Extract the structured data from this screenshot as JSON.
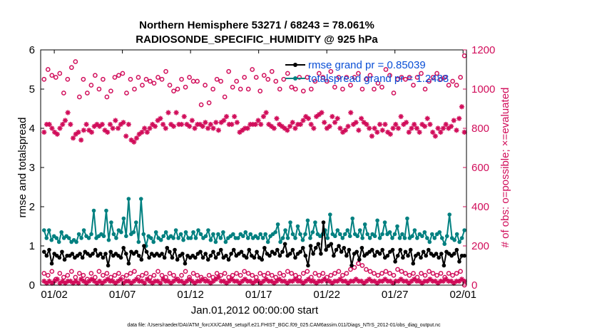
{
  "chart_data": {
    "type": "line",
    "title_line1": "Northern Hemisphere 53271 / 68243 = 78.061%",
    "title_line2": "RADIOSONDE_SPECIFIC_HUMIDITY @ 925 hPa",
    "xlabel": "Jan.01,2012 00:00:00 start",
    "ylabel_left": "rmse and totalspread",
    "ylabel_right": "# of obs: o=possible; ×=evaluated",
    "footer": "data file: /Users/raeder/DAI/ATM_forcXX/CAM6_setup/f.e21.FHIST_BGC.f09_025.CAM6assim.011/Diags_NTrS_2012-01/obs_diag_output.nc",
    "xlim": [
      0.5,
      31.75
    ],
    "ylim_left": [
      0,
      6
    ],
    "ylim_right": [
      0,
      1200
    ],
    "xticks": [
      1.5,
      6.5,
      11.5,
      16.5,
      21.5,
      26.5,
      31.5
    ],
    "xtick_labels": [
      "01/02",
      "01/07",
      "01/12",
      "01/17",
      "01/22",
      "01/27",
      "02/01"
    ],
    "yticks_left": [
      "0",
      "1",
      "2",
      "3",
      "4",
      "5",
      "6"
    ],
    "yticks_right": [
      "0",
      "200",
      "400",
      "600",
      "800",
      "1000",
      "1200"
    ],
    "colors": {
      "rmse": "#000000",
      "spread": "#008080",
      "obs": "#d10d5a",
      "legend_text": "#0a4fd6"
    },
    "x_start": 0.75,
    "x_step": 0.25,
    "series": [
      {
        "name": "rmse",
        "legend": "rmse grand pr = 0.85039",
        "axis": "left",
        "values": [
          0.85,
          0.75,
          0.9,
          0.55,
          0.8,
          0.75,
          0.7,
          0.85,
          0.65,
          0.75,
          0.75,
          0.8,
          0.7,
          0.75,
          0.8,
          0.7,
          0.85,
          0.8,
          0.75,
          0.8,
          0.9,
          0.75,
          0.8,
          0.7,
          0.8,
          0.5,
          0.85,
          0.75,
          0.8,
          0.75,
          0.7,
          0.95,
          0.8,
          0.55,
          0.85,
          0.8,
          0.85,
          0.75,
          0.65,
          1.0,
          0.85,
          0.7,
          0.8,
          0.75,
          0.8,
          0.75,
          0.8,
          0.7,
          0.95,
          0.85,
          0.7,
          0.9,
          0.65,
          0.75,
          0.8,
          0.55,
          0.75,
          0.7,
          0.75,
          0.7,
          0.8,
          0.85,
          0.7,
          0.8,
          0.65,
          0.75,
          0.85,
          0.7,
          0.8,
          0.9,
          0.7,
          0.75,
          0.65,
          0.8,
          0.9,
          0.75,
          0.8,
          0.85,
          0.75,
          0.7,
          0.9,
          0.75,
          0.7,
          0.85,
          0.7,
          0.65,
          0.95,
          0.8,
          0.75,
          0.85,
          0.8,
          0.9,
          0.75,
          0.85,
          1.05,
          0.75,
          0.8,
          0.9,
          0.7,
          0.8,
          0.85,
          0.95,
          0.75,
          0.5,
          1.0,
          0.8,
          0.95,
          1.05,
          0.8,
          1.6,
          0.9,
          1.0,
          1.05,
          0.75,
          0.9,
          1.0,
          0.85,
          0.95,
          0.75,
          0.9,
          0.5,
          0.8,
          0.85,
          0.65,
          0.95,
          0.75,
          0.8,
          0.85,
          0.9,
          0.75,
          0.85,
          0.8,
          0.9,
          0.7,
          0.75,
          0.85,
          0.9,
          0.6,
          0.75,
          0.9,
          0.7,
          0.85,
          0.75,
          0.9,
          0.55,
          0.75,
          0.8,
          0.7,
          0.85,
          0.75,
          0.9,
          0.8,
          0.75,
          0.8,
          0.7,
          0.8,
          0.5,
          0.85,
          0.8,
          0.75,
          0.8,
          0.9,
          0.6,
          0.75,
          0.75
        ]
      },
      {
        "name": "totalspread",
        "legend": "totalspread grand pr = 1.2488",
        "axis": "left",
        "values": [
          1.4,
          1.2,
          1.4,
          1.15,
          1.25,
          1.2,
          1.1,
          1.35,
          1.2,
          1.25,
          1.2,
          1.1,
          1.15,
          1.1,
          1.3,
          1.2,
          1.4,
          1.25,
          1.2,
          1.3,
          1.9,
          1.2,
          1.25,
          1.3,
          1.25,
          1.9,
          1.15,
          1.6,
          1.3,
          1.2,
          1.4,
          1.35,
          1.7,
          1.25,
          2.2,
          1.3,
          1.35,
          1.6,
          1.1,
          2.2,
          1.3,
          1.0,
          1.25,
          1.2,
          1.1,
          1.35,
          1.2,
          1.15,
          1.25,
          1.35,
          1.2,
          1.25,
          1.2,
          1.4,
          1.2,
          1.3,
          1.15,
          1.35,
          1.2,
          1.2,
          1.35,
          1.2,
          1.4,
          1.3,
          1.2,
          1.25,
          1.4,
          1.15,
          1.3,
          1.1,
          1.3,
          1.2,
          1.35,
          1.1,
          1.2,
          1.25,
          1.3,
          1.2,
          1.2,
          1.3,
          1.25,
          1.35,
          1.2,
          1.3,
          1.2,
          1.25,
          1.2,
          1.3,
          1.2,
          1.3,
          1.1,
          1.25,
          1.3,
          1.35,
          1.55,
          1.1,
          1.2,
          1.4,
          1.2,
          1.6,
          1.3,
          1.2,
          1.5,
          1.3,
          1.15,
          1.3,
          1.65,
          1.2,
          1.35,
          1.6,
          1.3,
          1.25,
          1.3,
          1.4,
          1.2,
          1.8,
          1.3,
          1.25,
          1.4,
          1.3,
          1.2,
          1.3,
          1.4,
          1.25,
          1.7,
          1.3,
          1.25,
          1.4,
          1.2,
          1.55,
          1.3,
          1.2,
          1.3,
          1.25,
          1.65,
          1.2,
          1.3,
          1.6,
          1.3,
          1.35,
          1.2,
          1.3,
          1.5,
          1.2,
          1.3,
          1.2,
          1.7,
          1.2,
          1.25,
          1.4,
          1.2,
          1.3,
          1.25,
          1.35,
          1.2,
          1.1,
          1.3,
          1.2,
          1.3,
          1.35,
          1.2,
          1.05,
          1.25,
          1.8,
          1.2,
          1.15,
          1.3,
          1.1,
          1.2,
          1.4
        ]
      },
      {
        "name": "obs_possible",
        "axis": "right",
        "marker": "o",
        "values": [
          1050,
          1100,
          1070,
          1060,
          1080,
          980,
          1050,
          1110,
          1140,
          960,
          1050,
          980,
          1020,
          1070,
          1000,
          1050,
          960,
          990,
          1060,
          1070,
          1080,
          980,
          1050,
          1000,
          1060,
          1020,
          1050,
          1040,
          1030,
          1060,
          1050,
          1090,
          1020,
          990,
          1000,
          1050,
          1010,
          1060,
          1040,
          1040,
          920,
          1020,
          930,
          1000,
          1050,
          1040,
          960,
          1090,
          1010,
          1040,
          1000,
          1060,
          1000,
          1100,
          1060,
          990,
          1070,
          1050,
          1090,
          1040,
          1000,
          1050,
          1080,
          1010,
          1000,
          1060,
          990,
          1060,
          1000,
          1040,
          1080,
          1060,
          1040,
          1090,
          1010,
          1060,
          1000,
          1060,
          1020,
          1060,
          1080,
          1000,
          1050,
          1070,
          1000,
          1030,
          1010,
          1100,
          1070,
          980,
          1050,
          1060,
          1050,
          1060,
          1020,
          1060,
          1080,
          1000,
          1040,
          1060,
          1080,
          1050,
          1060,
          1020,
          1040,
          1020,
          1060,
          1170
        ]
      },
      {
        "name": "obs_evaluated",
        "axis": "right",
        "marker": "x",
        "values": [
          780,
          820,
          820,
          800,
          780,
          770,
          800,
          820,
          840,
          880,
          820,
          750,
          770,
          780,
          740,
          790,
          820,
          790,
          780,
          810,
          820,
          810,
          820,
          790,
          780,
          820,
          800,
          840,
          800,
          820,
          830,
          760,
          820,
          740,
          730,
          750,
          770,
          780,
          800,
          780,
          800,
          820,
          810,
          840,
          850,
          820,
          800,
          880,
          820,
          810,
          880,
          820,
          820,
          860,
          820,
          810,
          840,
          800,
          820,
          820,
          810,
          830,
          800,
          820,
          800,
          830,
          790,
          830,
          840,
          860,
          820,
          820,
          860,
          830,
          780,
          790,
          800,
          800,
          820,
          820,
          820,
          840,
          820,
          860,
          880,
          820,
          810,
          800,
          850,
          820,
          810,
          800,
          790,
          810,
          830,
          800,
          820,
          820,
          840,
          860,
          850,
          820,
          800,
          860,
          870,
          880,
          830,
          800,
          810,
          860,
          830,
          850,
          800,
          780,
          790,
          810,
          880,
          820,
          830,
          790,
          850,
          830,
          820,
          800,
          760,
          800,
          780,
          820,
          790,
          820,
          780,
          770,
          800,
          820,
          800,
          860,
          820,
          830,
          780,
          800,
          820,
          800,
          780,
          820,
          810,
          850,
          820,
          780,
          760,
          800,
          780,
          800,
          820,
          800,
          810,
          840,
          790,
          850,
          910,
          780
        ]
      },
      {
        "name": "obs_possible_low",
        "axis": "right",
        "marker": "o",
        "values": [
          60,
          50,
          70,
          30,
          60,
          40,
          50,
          70,
          40,
          60,
          50,
          30,
          60,
          40,
          70,
          50,
          60,
          40,
          50,
          60,
          40,
          50,
          60,
          70,
          40,
          50,
          60,
          40,
          50,
          70,
          50,
          40,
          60,
          50,
          30,
          50,
          70,
          40,
          60,
          50,
          40,
          30,
          50,
          40,
          60,
          50,
          60,
          40,
          50,
          60,
          50,
          70,
          60,
          50,
          40,
          60,
          50,
          60,
          50,
          40,
          60,
          50,
          70,
          60,
          50,
          40,
          60,
          70,
          40,
          60,
          50,
          60,
          40,
          50,
          60,
          70,
          50,
          60,
          80,
          90,
          110,
          100,
          80,
          70,
          60,
          50,
          60,
          70,
          60,
          50,
          80,
          70,
          60,
          50,
          60,
          40,
          60,
          50,
          70,
          60,
          50,
          60,
          40,
          60,
          50,
          60,
          70,
          0
        ]
      },
      {
        "name": "obs_evaluated_low",
        "axis": "right",
        "marker": "x",
        "values": [
          20,
          10,
          20,
          10,
          20,
          30,
          10,
          20,
          10,
          20,
          20,
          10,
          20,
          10,
          30,
          20,
          10,
          20,
          30,
          20,
          10,
          20,
          10,
          20,
          30,
          20,
          20,
          10,
          20,
          30,
          10,
          20,
          20,
          10,
          20,
          30,
          20,
          20,
          10,
          30,
          20,
          10,
          20,
          20,
          10,
          30,
          20,
          20,
          10,
          20,
          30,
          20,
          20,
          10,
          20,
          30,
          20,
          10,
          20,
          20,
          30,
          20,
          20,
          10,
          20,
          30,
          40,
          20,
          20,
          10,
          20,
          30,
          20,
          20,
          10,
          20,
          30,
          20,
          20,
          10,
          20,
          20,
          10,
          20,
          30,
          20,
          20,
          10,
          20,
          30,
          20,
          20,
          10,
          20,
          20,
          30,
          20,
          20,
          10,
          20,
          30,
          20,
          20,
          10,
          20,
          20,
          30,
          20,
          20,
          10,
          20,
          20,
          30,
          20,
          20,
          10,
          20,
          20,
          30,
          20,
          20,
          10,
          20,
          30,
          20,
          20,
          10,
          20,
          20,
          30,
          20,
          20,
          10,
          20,
          20,
          30,
          20,
          20,
          10,
          20,
          30,
          20,
          20,
          10,
          20,
          20,
          30,
          20,
          20,
          10,
          20,
          20,
          30,
          20,
          20,
          10,
          20,
          20,
          30,
          20
        ]
      }
    ]
  }
}
